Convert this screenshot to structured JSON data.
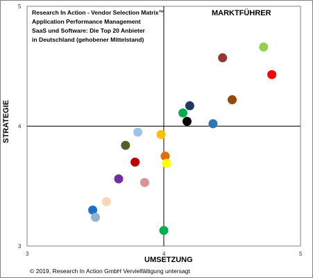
{
  "title_lines": [
    "Research In Action - Vendor Selection Matrix™",
    "Application Performance Management",
    "SaaS und Software: Die Top 20 Anbieter",
    "in Deutschland (gehobener Mittelstand)"
  ],
  "corner_label": "MARKTFÜHRER",
  "copyright": "© 2019, Research In Action GmbH Vervielfältigung untersagt",
  "chart_data": {
    "type": "scatter",
    "xlabel": "UMSETZUNG",
    "ylabel": "STRATEGIE",
    "xlim": [
      3,
      5
    ],
    "ylim": [
      3,
      5
    ],
    "x_ticks": [
      "3",
      "4",
      "5"
    ],
    "y_ticks": [
      "3",
      "4",
      "5"
    ],
    "quadrant_lines": {
      "x": 4,
      "y": 4
    },
    "points": [
      {
        "x": 4.73,
        "y": 4.66,
        "color": "#92d050"
      },
      {
        "x": 4.43,
        "y": 4.57,
        "color": "#943634"
      },
      {
        "x": 4.79,
        "y": 4.43,
        "color": "#ff0000"
      },
      {
        "x": 4.5,
        "y": 4.22,
        "color": "#974806"
      },
      {
        "x": 4.19,
        "y": 4.17,
        "color": "#1f3864"
      },
      {
        "x": 4.14,
        "y": 4.11,
        "color": "#00b050"
      },
      {
        "x": 4.17,
        "y": 4.04,
        "color": "#000000"
      },
      {
        "x": 4.36,
        "y": 4.02,
        "color": "#2e75b6"
      },
      {
        "x": 3.81,
        "y": 3.95,
        "color": "#9dc3e6"
      },
      {
        "x": 3.98,
        "y": 3.93,
        "color": "#ffc000"
      },
      {
        "x": 3.72,
        "y": 3.84,
        "color": "#4f6228"
      },
      {
        "x": 4.01,
        "y": 3.75,
        "color": "#e46c0a"
      },
      {
        "x": 3.79,
        "y": 3.7,
        "color": "#c00000"
      },
      {
        "x": 4.02,
        "y": 3.69,
        "color": "#ffff00"
      },
      {
        "x": 3.67,
        "y": 3.56,
        "color": "#7030a0"
      },
      {
        "x": 3.86,
        "y": 3.53,
        "color": "#d99594"
      },
      {
        "x": 3.58,
        "y": 3.37,
        "color": "#fbd5b5"
      },
      {
        "x": 3.48,
        "y": 3.3,
        "color": "#1f6fc5"
      },
      {
        "x": 3.5,
        "y": 3.24,
        "color": "#8fb4d0"
      },
      {
        "x": 4.0,
        "y": 3.13,
        "color": "#00b050"
      }
    ]
  }
}
